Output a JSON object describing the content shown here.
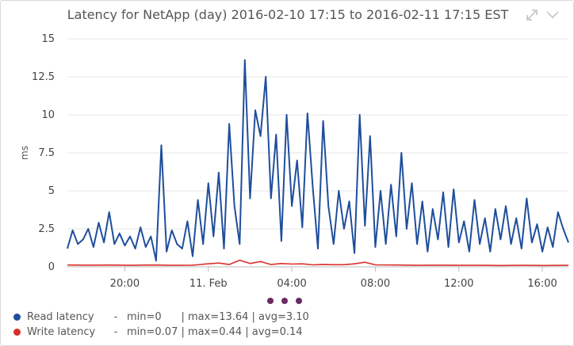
{
  "header": {
    "title": "Latency for NetApp (day) 2016-02-10 17:15 to 2016-02-11 17:15 EST",
    "expand_icon": "expand-arrows-icon",
    "collapse_icon": "chevron-down-icon"
  },
  "legend": {
    "items": [
      {
        "name": "Read latency",
        "sep": "-",
        "stats": "min=0      | max=13.64 | avg=3.10",
        "color": "#1f4e9c"
      },
      {
        "name": "Write latency",
        "sep": "-",
        "stats": "min=0.07 | max=0.44 | avg=0.14",
        "color": "#d9302c"
      }
    ]
  },
  "pager": {
    "pages": 3
  },
  "chart_data": {
    "type": "line",
    "title": "Latency for NetApp (day) 2016-02-10 17:15 to 2016-02-11 17:15 EST",
    "xlabel": "",
    "ylabel": "ms",
    "xlim": [
      "2016-02-10 17:15",
      "2016-02-11 17:15"
    ],
    "ylim": [
      0,
      15
    ],
    "y_ticks": [
      0,
      2.5,
      5,
      7.5,
      10,
      12.5,
      15
    ],
    "x_ticks": [
      {
        "label": "20:00",
        "t": "2016-02-10 20:00"
      },
      {
        "label": "11. Feb",
        "t": "2016-02-11 00:00"
      },
      {
        "label": "04:00",
        "t": "2016-02-11 04:00"
      },
      {
        "label": "08:00",
        "t": "2016-02-11 08:00"
      },
      {
        "label": "12:00",
        "t": "2016-02-11 12:00"
      },
      {
        "label": "16:00",
        "t": "2016-02-11 16:00"
      }
    ],
    "grid": "horizontal",
    "legend_position": "bottom-left",
    "series": [
      {
        "name": "Read latency",
        "color": "#1f4e9c",
        "points": [
          [
            "2016-02-10 17:15",
            1.2
          ],
          [
            "2016-02-10 17:30",
            2.4
          ],
          [
            "2016-02-10 17:45",
            1.5
          ],
          [
            "2016-02-10 18:00",
            1.8
          ],
          [
            "2016-02-10 18:15",
            2.5
          ],
          [
            "2016-02-10 18:30",
            1.3
          ],
          [
            "2016-02-10 18:45",
            2.9
          ],
          [
            "2016-02-10 19:00",
            1.6
          ],
          [
            "2016-02-10 19:15",
            3.6
          ],
          [
            "2016-02-10 19:30",
            1.5
          ],
          [
            "2016-02-10 19:45",
            2.2
          ],
          [
            "2016-02-10 20:00",
            1.4
          ],
          [
            "2016-02-10 20:15",
            2.0
          ],
          [
            "2016-02-10 20:30",
            1.2
          ],
          [
            "2016-02-10 20:45",
            2.6
          ],
          [
            "2016-02-10 21:00",
            1.3
          ],
          [
            "2016-02-10 21:15",
            2.0
          ],
          [
            "2016-02-10 21:30",
            0.4
          ],
          [
            "2016-02-10 21:45",
            8.0
          ],
          [
            "2016-02-10 22:00",
            1.0
          ],
          [
            "2016-02-10 22:15",
            2.4
          ],
          [
            "2016-02-10 22:30",
            1.5
          ],
          [
            "2016-02-10 22:45",
            1.2
          ],
          [
            "2016-02-10 23:00",
            3.0
          ],
          [
            "2016-02-10 23:15",
            0.7
          ],
          [
            "2016-02-10 23:30",
            4.4
          ],
          [
            "2016-02-10 23:45",
            1.5
          ],
          [
            "2016-02-11 00:00",
            5.5
          ],
          [
            "2016-02-11 00:15",
            2.0
          ],
          [
            "2016-02-11 00:30",
            6.2
          ],
          [
            "2016-02-11 00:45",
            1.2
          ],
          [
            "2016-02-11 01:00",
            9.4
          ],
          [
            "2016-02-11 01:15",
            4.0
          ],
          [
            "2016-02-11 01:30",
            1.5
          ],
          [
            "2016-02-11 01:45",
            13.6
          ],
          [
            "2016-02-11 02:00",
            4.5
          ],
          [
            "2016-02-11 02:15",
            10.3
          ],
          [
            "2016-02-11 02:30",
            8.6
          ],
          [
            "2016-02-11 02:45",
            12.5
          ],
          [
            "2016-02-11 03:00",
            4.5
          ],
          [
            "2016-02-11 03:15",
            8.7
          ],
          [
            "2016-02-11 03:30",
            1.7
          ],
          [
            "2016-02-11 03:45",
            10.0
          ],
          [
            "2016-02-11 04:00",
            4.0
          ],
          [
            "2016-02-11 04:15",
            7.0
          ],
          [
            "2016-02-11 04:30",
            2.6
          ],
          [
            "2016-02-11 04:45",
            10.1
          ],
          [
            "2016-02-11 05:00",
            5.3
          ],
          [
            "2016-02-11 05:15",
            1.2
          ],
          [
            "2016-02-11 05:30",
            9.6
          ],
          [
            "2016-02-11 05:45",
            4.0
          ],
          [
            "2016-02-11 06:00",
            1.5
          ],
          [
            "2016-02-11 06:15",
            5.0
          ],
          [
            "2016-02-11 06:30",
            2.5
          ],
          [
            "2016-02-11 06:45",
            4.3
          ],
          [
            "2016-02-11 07:00",
            0.9
          ],
          [
            "2016-02-11 07:15",
            10.0
          ],
          [
            "2016-02-11 07:30",
            2.7
          ],
          [
            "2016-02-11 07:45",
            8.6
          ],
          [
            "2016-02-11 08:00",
            1.3
          ],
          [
            "2016-02-11 08:15",
            5.0
          ],
          [
            "2016-02-11 08:30",
            1.5
          ],
          [
            "2016-02-11 08:45",
            5.4
          ],
          [
            "2016-02-11 09:00",
            2.0
          ],
          [
            "2016-02-11 09:15",
            7.5
          ],
          [
            "2016-02-11 09:30",
            2.5
          ],
          [
            "2016-02-11 09:45",
            5.5
          ],
          [
            "2016-02-11 10:00",
            1.5
          ],
          [
            "2016-02-11 10:15",
            4.3
          ],
          [
            "2016-02-11 10:30",
            1.0
          ],
          [
            "2016-02-11 10:45",
            3.8
          ],
          [
            "2016-02-11 11:00",
            1.8
          ],
          [
            "2016-02-11 11:15",
            4.9
          ],
          [
            "2016-02-11 11:30",
            1.3
          ],
          [
            "2016-02-11 11:45",
            5.1
          ],
          [
            "2016-02-11 12:00",
            1.6
          ],
          [
            "2016-02-11 12:15",
            3.0
          ],
          [
            "2016-02-11 12:30",
            1.0
          ],
          [
            "2016-02-11 12:45",
            4.4
          ],
          [
            "2016-02-11 13:00",
            1.5
          ],
          [
            "2016-02-11 13:15",
            3.2
          ],
          [
            "2016-02-11 13:30",
            1.0
          ],
          [
            "2016-02-11 13:45",
            3.8
          ],
          [
            "2016-02-11 14:00",
            1.8
          ],
          [
            "2016-02-11 14:15",
            4.0
          ],
          [
            "2016-02-11 14:30",
            1.5
          ],
          [
            "2016-02-11 14:45",
            3.2
          ],
          [
            "2016-02-11 15:00",
            1.2
          ],
          [
            "2016-02-11 15:15",
            4.5
          ],
          [
            "2016-02-11 15:30",
            1.6
          ],
          [
            "2016-02-11 15:45",
            2.8
          ],
          [
            "2016-02-11 16:00",
            1.0
          ],
          [
            "2016-02-11 16:15",
            2.6
          ],
          [
            "2016-02-11 16:30",
            1.3
          ],
          [
            "2016-02-11 16:45",
            3.6
          ],
          [
            "2016-02-11 17:00",
            2.5
          ],
          [
            "2016-02-11 17:15",
            1.6
          ]
        ]
      },
      {
        "name": "Write latency",
        "color": "#d9302c",
        "points": [
          [
            "2016-02-10 17:15",
            0.12
          ],
          [
            "2016-02-10 18:15",
            0.11
          ],
          [
            "2016-02-10 19:15",
            0.12
          ],
          [
            "2016-02-10 20:15",
            0.1
          ],
          [
            "2016-02-10 21:15",
            0.12
          ],
          [
            "2016-02-10 22:15",
            0.1
          ],
          [
            "2016-02-10 23:15",
            0.11
          ],
          [
            "2016-02-11 00:00",
            0.2
          ],
          [
            "2016-02-11 00:30",
            0.25
          ],
          [
            "2016-02-11 01:00",
            0.15
          ],
          [
            "2016-02-11 01:30",
            0.44
          ],
          [
            "2016-02-11 02:00",
            0.22
          ],
          [
            "2016-02-11 02:30",
            0.35
          ],
          [
            "2016-02-11 03:00",
            0.15
          ],
          [
            "2016-02-11 03:30",
            0.22
          ],
          [
            "2016-02-11 04:00",
            0.18
          ],
          [
            "2016-02-11 04:30",
            0.2
          ],
          [
            "2016-02-11 05:00",
            0.13
          ],
          [
            "2016-02-11 05:30",
            0.15
          ],
          [
            "2016-02-11 06:00",
            0.14
          ],
          [
            "2016-02-11 06:30",
            0.14
          ],
          [
            "2016-02-11 07:00",
            0.2
          ],
          [
            "2016-02-11 07:30",
            0.3
          ],
          [
            "2016-02-11 08:00",
            0.13
          ],
          [
            "2016-02-11 09:00",
            0.12
          ],
          [
            "2016-02-11 10:00",
            0.1
          ],
          [
            "2016-02-11 11:00",
            0.11
          ],
          [
            "2016-02-11 12:00",
            0.1
          ],
          [
            "2016-02-11 13:00",
            0.1
          ],
          [
            "2016-02-11 14:00",
            0.09
          ],
          [
            "2016-02-11 15:00",
            0.1
          ],
          [
            "2016-02-11 16:00",
            0.09
          ],
          [
            "2016-02-11 17:15",
            0.1
          ]
        ]
      }
    ]
  }
}
